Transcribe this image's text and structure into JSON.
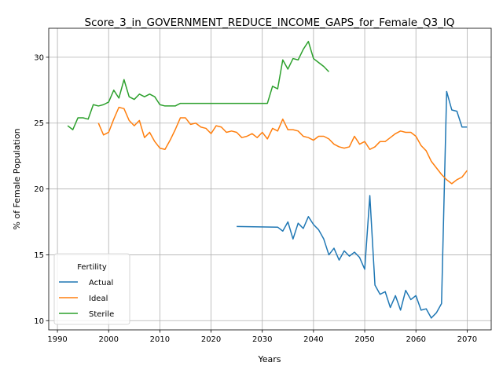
{
  "chart_data": {
    "type": "line",
    "title": "Score_3_in_GOVERNMENT_REDUCE_INCOME_GAPS_for_Female_Q3_IQ",
    "xlabel": "Years",
    "ylabel": "% of Female Population",
    "xlim": [
      1988.3,
      2074.7
    ],
    "ylim": [
      9.3,
      32.2
    ],
    "xticks": [
      1990,
      2000,
      2010,
      2020,
      2030,
      2040,
      2050,
      2060,
      2070
    ],
    "yticks": [
      10,
      15,
      20,
      25,
      30
    ],
    "grid": true,
    "legend": {
      "title": "Fertility",
      "position": "lower-left"
    },
    "series": [
      {
        "name": "Actual",
        "color": "#1f77b4",
        "points": [
          [
            2025,
            17.15
          ],
          [
            2033,
            17.1
          ],
          [
            2034,
            16.8
          ],
          [
            2035,
            17.5
          ],
          [
            2036,
            16.2
          ],
          [
            2037,
            17.4
          ],
          [
            2038,
            17.0
          ],
          [
            2039,
            17.9
          ],
          [
            2040,
            17.3
          ],
          [
            2041,
            16.9
          ],
          [
            2042,
            16.2
          ],
          [
            2043,
            15.0
          ],
          [
            2044,
            15.5
          ],
          [
            2045,
            14.6
          ],
          [
            2046,
            15.3
          ],
          [
            2047,
            14.9
          ],
          [
            2048,
            15.2
          ],
          [
            2049,
            14.8
          ],
          [
            2050,
            13.9
          ],
          [
            2051,
            19.5
          ],
          [
            2052,
            12.7
          ],
          [
            2053,
            12.0
          ],
          [
            2054,
            12.2
          ],
          [
            2055,
            11.0
          ],
          [
            2056,
            11.9
          ],
          [
            2057,
            10.8
          ],
          [
            2058,
            12.3
          ],
          [
            2059,
            11.6
          ],
          [
            2060,
            11.9
          ],
          [
            2061,
            10.8
          ],
          [
            2062,
            10.9
          ],
          [
            2063,
            10.2
          ],
          [
            2064,
            10.6
          ],
          [
            2065,
            11.3
          ],
          [
            2066,
            27.4
          ],
          [
            2067,
            26.0
          ],
          [
            2068,
            25.9
          ],
          [
            2069,
            24.7
          ],
          [
            2070,
            24.7
          ]
        ]
      },
      {
        "name": "Ideal",
        "color": "#ff7f0e",
        "points": [
          [
            1998,
            25.0
          ],
          [
            1999,
            24.1
          ],
          [
            2000,
            24.3
          ],
          [
            2001,
            25.3
          ],
          [
            2002,
            26.2
          ],
          [
            2003,
            26.1
          ],
          [
            2004,
            25.2
          ],
          [
            2005,
            24.8
          ],
          [
            2006,
            25.2
          ],
          [
            2007,
            23.9
          ],
          [
            2008,
            24.3
          ],
          [
            2009,
            23.6
          ],
          [
            2010,
            23.1
          ],
          [
            2011,
            23.0
          ],
          [
            2012,
            23.7
          ],
          [
            2013,
            24.5
          ],
          [
            2014,
            25.4
          ],
          [
            2015,
            25.4
          ],
          [
            2016,
            24.9
          ],
          [
            2017,
            25.0
          ],
          [
            2018,
            24.7
          ],
          [
            2019,
            24.6
          ],
          [
            2020,
            24.2
          ],
          [
            2021,
            24.8
          ],
          [
            2022,
            24.7
          ],
          [
            2023,
            24.3
          ],
          [
            2024,
            24.4
          ],
          [
            2025,
            24.3
          ],
          [
            2026,
            23.9
          ],
          [
            2027,
            24.0
          ],
          [
            2028,
            24.2
          ],
          [
            2029,
            23.9
          ],
          [
            2030,
            24.3
          ],
          [
            2031,
            23.8
          ],
          [
            2032,
            24.6
          ],
          [
            2033,
            24.4
          ],
          [
            2034,
            25.3
          ],
          [
            2035,
            24.5
          ],
          [
            2036,
            24.5
          ],
          [
            2037,
            24.4
          ],
          [
            2038,
            24.0
          ],
          [
            2039,
            23.9
          ],
          [
            2040,
            23.7
          ],
          [
            2041,
            24.0
          ],
          [
            2042,
            24.0
          ],
          [
            2043,
            23.8
          ],
          [
            2044,
            23.4
          ],
          [
            2045,
            23.2
          ],
          [
            2046,
            23.1
          ],
          [
            2047,
            23.2
          ],
          [
            2048,
            24.0
          ],
          [
            2049,
            23.4
          ],
          [
            2050,
            23.6
          ],
          [
            2051,
            23.0
          ],
          [
            2052,
            23.2
          ],
          [
            2053,
            23.6
          ],
          [
            2054,
            23.6
          ],
          [
            2055,
            23.9
          ],
          [
            2056,
            24.2
          ],
          [
            2057,
            24.4
          ],
          [
            2058,
            24.3
          ],
          [
            2059,
            24.3
          ],
          [
            2060,
            24.0
          ],
          [
            2061,
            23.3
          ],
          [
            2062,
            22.9
          ],
          [
            2063,
            22.1
          ],
          [
            2064,
            21.6
          ],
          [
            2065,
            21.1
          ],
          [
            2066,
            20.7
          ],
          [
            2067,
            20.4
          ],
          [
            2068,
            20.7
          ],
          [
            2069,
            20.9
          ],
          [
            2070,
            21.4
          ]
        ]
      },
      {
        "name": "Sterile",
        "color": "#2ca02c",
        "points": [
          [
            1992,
            24.8
          ],
          [
            1993,
            24.5
          ],
          [
            1994,
            25.4
          ],
          [
            1995,
            25.4
          ],
          [
            1996,
            25.3
          ],
          [
            1997,
            26.4
          ],
          [
            1998,
            26.3
          ],
          [
            1999,
            26.4
          ],
          [
            2000,
            26.6
          ],
          [
            2001,
            27.5
          ],
          [
            2002,
            26.9
          ],
          [
            2003,
            28.3
          ],
          [
            2004,
            27.0
          ],
          [
            2005,
            26.8
          ],
          [
            2006,
            27.2
          ],
          [
            2007,
            27.0
          ],
          [
            2008,
            27.2
          ],
          [
            2009,
            27.0
          ],
          [
            2010,
            26.4
          ],
          [
            2011,
            26.3
          ],
          [
            2012,
            26.3
          ],
          [
            2013,
            26.3
          ],
          [
            2014,
            26.5
          ],
          [
            2015,
            26.5
          ],
          [
            2016,
            26.5
          ],
          [
            2017,
            26.5
          ],
          [
            2018,
            26.5
          ],
          [
            2019,
            26.5
          ],
          [
            2020,
            26.5
          ],
          [
            2021,
            26.5
          ],
          [
            2022,
            26.5
          ],
          [
            2023,
            26.5
          ],
          [
            2024,
            26.5
          ],
          [
            2025,
            26.5
          ],
          [
            2026,
            26.5
          ],
          [
            2027,
            26.5
          ],
          [
            2028,
            26.5
          ],
          [
            2029,
            26.5
          ],
          [
            2030,
            26.5
          ],
          [
            2031,
            26.5
          ],
          [
            2032,
            27.8
          ],
          [
            2033,
            27.6
          ],
          [
            2034,
            29.8
          ],
          [
            2035,
            29.1
          ],
          [
            2036,
            29.9
          ],
          [
            2037,
            29.8
          ],
          [
            2038,
            30.6
          ],
          [
            2039,
            31.2
          ],
          [
            2040,
            29.9
          ],
          [
            2041,
            29.6
          ],
          [
            2042,
            29.3
          ],
          [
            2043,
            28.9
          ]
        ]
      }
    ]
  }
}
